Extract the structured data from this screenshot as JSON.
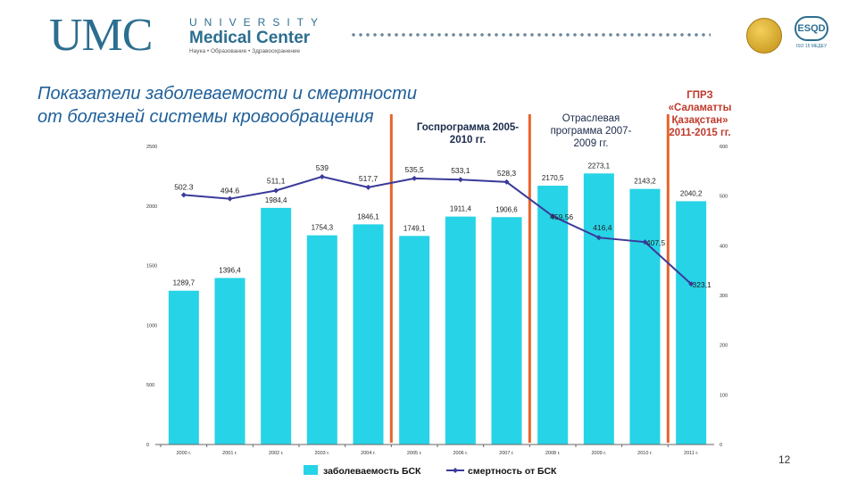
{
  "header": {
    "logo_letters": "UMC",
    "logo_university": "UNIVERSITY",
    "logo_name": "Medical Center",
    "logo_tagline": "Наука • Образование • Здравоохранение",
    "certification_caption": "ISO 15 МЕДЕУ",
    "certification_mark": "ESQD"
  },
  "slide": {
    "title_line1": "Показатели заболеваемости и смертности",
    "title_line2": "от болезней системы кровообращения",
    "page_number": "12"
  },
  "annotations": {
    "gosprogramma": "Госпрограмма 2005-2010 гг.",
    "otraslevaya": "Отраслевая программа 2007-2009 гг.",
    "gprz_title": "ГПРЗ",
    "gprz_name": "«Саламатты Қазақстан»",
    "gprz_years": "2011-2015 гг."
  },
  "colors": {
    "bar": "#27d3e6",
    "line": "#3a3a9a",
    "divider": "#e8652a",
    "title": "#1f5f99",
    "annotation_dark": "#1a2a4a",
    "annotation_red": "#c0392b",
    "axis": "#666666"
  },
  "chart_data": {
    "type": "bar+line",
    "categories": [
      "2000 г.",
      "2001 г.",
      "2002 г.",
      "2003 г.",
      "2004 г.",
      "2005 г.",
      "2006 г.",
      "2007 г.",
      "2008 г.",
      "2009 г.",
      "2010 г.",
      "2011 г."
    ],
    "series": [
      {
        "name": "заболеваемость БСК",
        "type": "bar",
        "axis": "left",
        "values": [
          1289.7,
          1396.4,
          1984.4,
          1754.3,
          1846.1,
          1749.1,
          1911.4,
          1906.6,
          2170.5,
          2273.1,
          2143.2,
          2040.2
        ],
        "labels": [
          "1289,7",
          "1396,4",
          "1984,4",
          "1754,3",
          "1846,1",
          "1749,1",
          "1911,4",
          "1906,6",
          "2170,5",
          "2273,1",
          "2143,2",
          "2040,2"
        ]
      },
      {
        "name": "смертность от БСК",
        "type": "line",
        "axis": "right",
        "values": [
          502.3,
          494.6,
          511.1,
          539,
          517.7,
          535.5,
          533.1,
          528.3,
          459.56,
          416.4,
          407.5,
          323.1
        ],
        "labels": [
          "502.3",
          "494.6",
          "511,1",
          "539",
          "517,7",
          "535,5",
          "533,1",
          "528,3",
          "459,56",
          "416,4",
          "407,5",
          "323,1"
        ]
      }
    ],
    "y_left": {
      "min": 0,
      "max": 2500,
      "ticks": [
        "0",
        "500",
        "1000",
        "1500",
        "2000",
        "2500"
      ]
    },
    "y_right": {
      "min": 0,
      "max": 600,
      "ticks": [
        "0",
        "100",
        "200",
        "300",
        "400",
        "500",
        "600"
      ]
    },
    "legend": {
      "position": "bottom",
      "entries": [
        "заболеваемость БСК",
        "смертность от БСК"
      ]
    },
    "dividers_after_category": [
      "2004 г.",
      "2007 г.",
      "2010 г."
    ]
  }
}
